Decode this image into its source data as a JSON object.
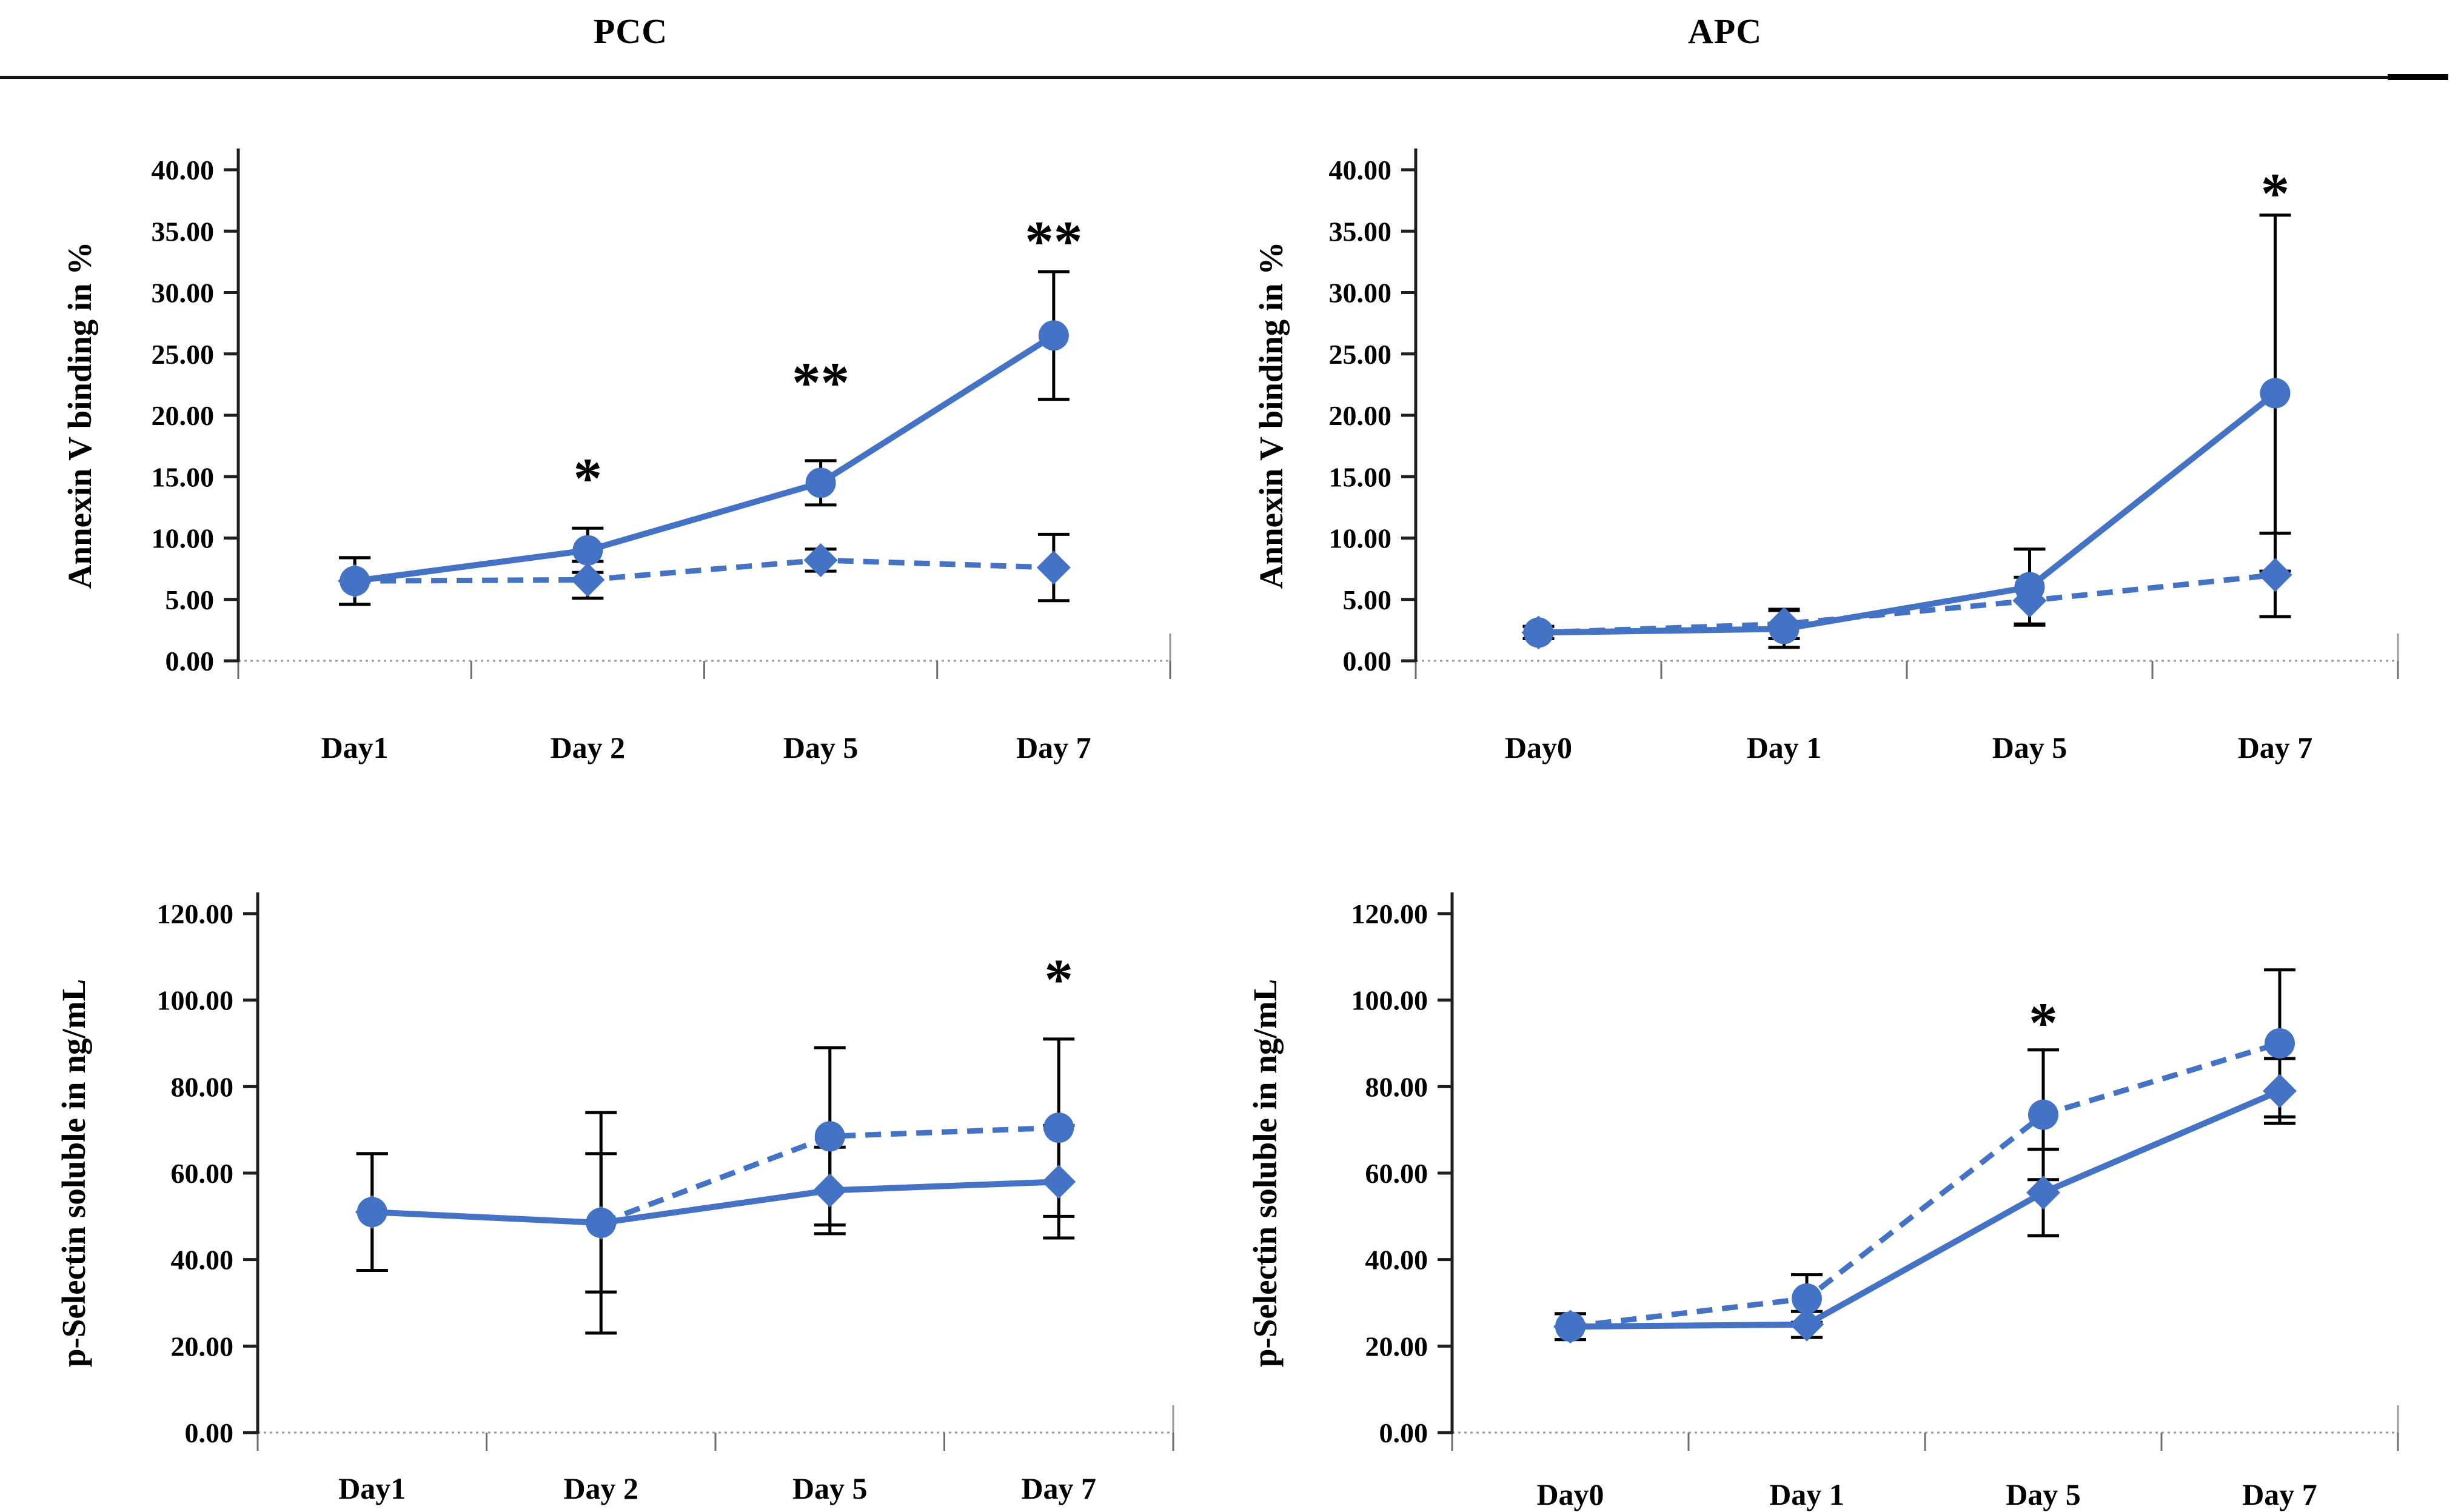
{
  "page": {
    "left_header": "PCC",
    "right_header": "APC",
    "accent_color": "#4472C4",
    "error_bar_color": "#000000",
    "axis_color": "#1f1f1f",
    "baseline_color": "#9a9a9a"
  },
  "chart_data": [
    {
      "id": "pcc-annexin",
      "type": "line",
      "group_title": "PCC",
      "ylabel": "Annexin V binding in %",
      "ylim": [
        0,
        40
      ],
      "ytick_step": 5,
      "ytick_labels": [
        "0.00",
        "5.00",
        "10.00",
        "15.00",
        "20.00",
        "25.00",
        "30.00",
        "35.00",
        "40.00"
      ],
      "grid": false,
      "legend": "none",
      "categories": [
        "Day1",
        "Day 2",
        "Day 5",
        "Day 7"
      ],
      "series": [
        {
          "style": "solid",
          "marker": "circle",
          "values": [
            6.5,
            9.0,
            14.5,
            26.5
          ],
          "errors": [
            1.9,
            1.8,
            1.8,
            5.2
          ]
        },
        {
          "style": "dashed",
          "marker": "diamond",
          "values": [
            6.5,
            6.6,
            8.2,
            7.6
          ],
          "errors": [
            1.9,
            1.5,
            0.9,
            2.7
          ]
        }
      ],
      "annotations": [
        {
          "category_index": 1,
          "value": 16.0,
          "text": "*"
        },
        {
          "category_index": 2,
          "value": 23.8,
          "text": "**"
        },
        {
          "category_index": 3,
          "value": 35.3,
          "text": "**"
        }
      ]
    },
    {
      "id": "apc-annexin",
      "type": "line",
      "group_title": "APC",
      "ylabel": "Annexin V binding in %",
      "ylim": [
        0,
        40
      ],
      "ytick_step": 5,
      "ytick_labels": [
        "0.00",
        "5.00",
        "10.00",
        "15.00",
        "20.00",
        "25.00",
        "30.00",
        "35.00",
        "40.00"
      ],
      "grid": false,
      "legend": "none",
      "categories": [
        "Day0",
        "Day 1",
        "Day 5",
        "Day 7"
      ],
      "series": [
        {
          "style": "solid",
          "marker": "circle",
          "values": [
            2.3,
            2.6,
            6.0,
            21.8
          ],
          "errors": [
            0.5,
            1.5,
            3.1,
            14.5
          ]
        },
        {
          "style": "dashed",
          "marker": "diamond",
          "values": [
            2.3,
            3.0,
            4.9,
            7.0
          ],
          "errors": [
            0.5,
            1.2,
            1.9,
            3.4
          ]
        }
      ],
      "annotations": [
        {
          "category_index": 3,
          "value": 39.2,
          "text": "*"
        }
      ]
    },
    {
      "id": "pcc-pselectin",
      "type": "line",
      "group_title": "PCC",
      "ylabel": "p-Selectin soluble in ng/mL",
      "ylim": [
        0,
        120
      ],
      "ytick_step": 20,
      "ytick_labels": [
        "0.00",
        "20.00",
        "40.00",
        "60.00",
        "80.00",
        "100.00",
        "120.00"
      ],
      "grid": false,
      "legend": "none",
      "categories": [
        "Day1",
        "Day 2",
        "Day 5",
        "Day 7"
      ],
      "series": [
        {
          "style": "solid",
          "marker": "diamond",
          "values": [
            51.0,
            48.5,
            56.0,
            58.0
          ],
          "errors": [
            13.5,
            16.0,
            10.0,
            13.0
          ]
        },
        {
          "style": "dashed",
          "marker": "circle",
          "values": [
            51.0,
            48.5,
            68.5,
            70.5
          ],
          "errors": [
            13.5,
            25.5,
            20.5,
            20.5
          ]
        }
      ],
      "annotations": [
        {
          "category_index": 3,
          "value": 108.0,
          "text": "*"
        }
      ]
    },
    {
      "id": "apc-pselectin",
      "type": "line",
      "group_title": "APC",
      "ylabel": "p-Selectin soluble in ng/mL",
      "ylim": [
        0,
        120
      ],
      "ytick_step": 20,
      "ytick_labels": [
        "0.00",
        "20.00",
        "40.00",
        "60.00",
        "80.00",
        "100.00",
        "120.00"
      ],
      "grid": false,
      "legend": "none",
      "categories": [
        "Day0",
        "Day 1",
        "Day 5",
        "Day 7"
      ],
      "series": [
        {
          "style": "solid",
          "marker": "diamond",
          "values": [
            24.5,
            25.0,
            55.5,
            79.0
          ],
          "errors": [
            3.0,
            3.0,
            10.0,
            7.5
          ]
        },
        {
          "style": "dashed",
          "marker": "circle",
          "values": [
            24.5,
            31.0,
            73.5,
            90.0
          ],
          "errors": [
            3.0,
            5.5,
            15.0,
            17.0
          ]
        }
      ],
      "annotations": [
        {
          "category_index": 2,
          "value": 98.0,
          "text": "*"
        }
      ]
    }
  ]
}
